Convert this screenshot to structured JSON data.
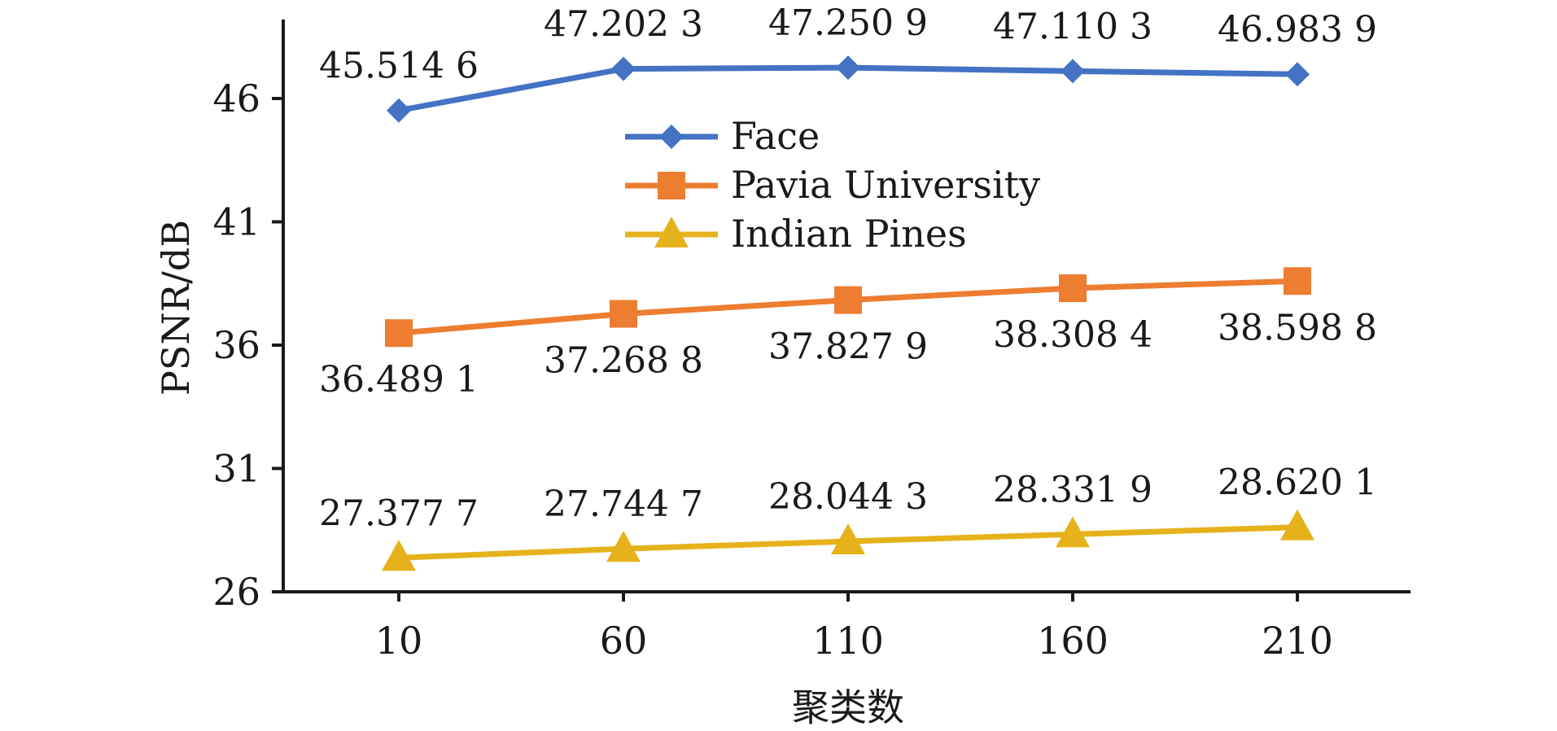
{
  "chart_data": {
    "type": "line",
    "title": "",
    "xlabel": "聚类数",
    "ylabel": "PSNR/dB",
    "categories": [
      "10",
      "60",
      "110",
      "160",
      "210"
    ],
    "ylim": [
      26,
      49
    ],
    "yticks": [
      "26",
      "31",
      "36",
      "41",
      "46"
    ],
    "grid": false,
    "legend_position": "upper-center",
    "series": [
      {
        "name": "Face",
        "color": "#4472C4",
        "marker": "diamond",
        "label_position": "above",
        "values": [
          45.5146,
          47.2023,
          47.2509,
          47.1103,
          46.9839
        ],
        "labels": [
          "45.514 6",
          "47.202 3",
          "47.250 9",
          "47.110 3",
          "46.983 9"
        ]
      },
      {
        "name": "Pavia University",
        "color": "#ED7D31",
        "marker": "square",
        "label_position": "below",
        "values": [
          36.4891,
          37.2688,
          37.8279,
          38.3084,
          38.5988
        ],
        "labels": [
          "36.489 1",
          "37.268 8",
          "37.827 9",
          "38.308 4",
          "38.598 8"
        ]
      },
      {
        "name": "Indian Pines",
        "color": "#E6B21C",
        "marker": "triangle",
        "label_position": "above",
        "values": [
          27.3777,
          27.7447,
          28.0443,
          28.3319,
          28.6201
        ],
        "labels": [
          "27.377 7",
          "27.744 7",
          "28.044 3",
          "28.331 9",
          "28.620 1"
        ]
      }
    ]
  }
}
